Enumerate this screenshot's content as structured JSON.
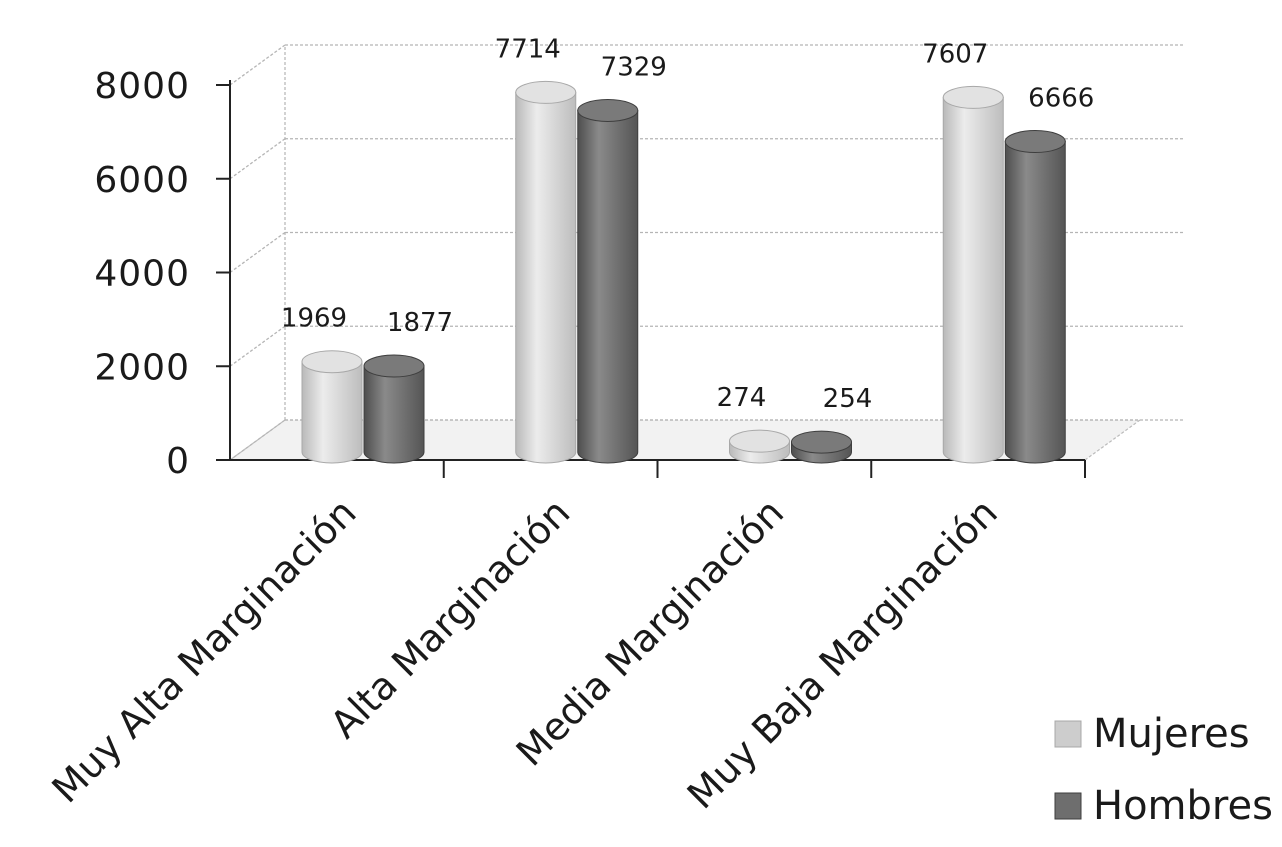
{
  "chart_data": {
    "type": "bar",
    "categories": [
      "Muy Alta Marginación",
      "Alta Marginación",
      "Media Marginación",
      "Muy Baja Marginación"
    ],
    "series": [
      {
        "name": "Mujeres",
        "values": [
          1969,
          7714,
          274,
          7607
        ],
        "color": "#cdcdcd"
      },
      {
        "name": "Hombres",
        "values": [
          1877,
          7329,
          254,
          6666
        ],
        "color": "#6e6e6e"
      }
    ],
    "yticks": [
      "0",
      "2000",
      "4000",
      "6000",
      "8000"
    ],
    "ylim": [
      0,
      8000
    ],
    "grid": true,
    "legend": "bottom-right",
    "style": "3d-cylinder"
  }
}
